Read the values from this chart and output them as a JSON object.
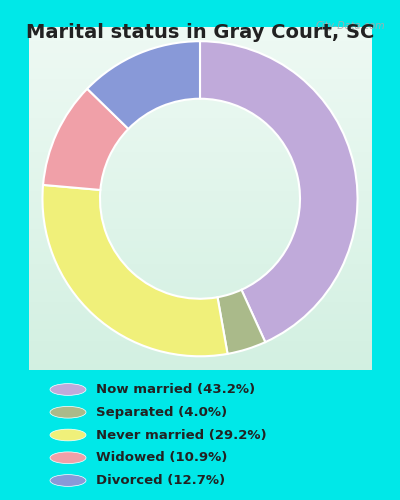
{
  "title": "Marital status in Gray Court, SC",
  "title_fontsize": 14,
  "title_fontweight": "bold",
  "categories": [
    "Now married",
    "Separated",
    "Never married",
    "Widowed",
    "Divorced"
  ],
  "values": [
    43.2,
    4.0,
    29.2,
    10.9,
    12.7
  ],
  "colors": [
    "#c0aada",
    "#aaba8a",
    "#f0f07a",
    "#f0a0a8",
    "#8899d8"
  ],
  "legend_labels": [
    "Now married (43.2%)",
    "Separated (4.0%)",
    "Never married (29.2%)",
    "Widowed (10.9%)",
    "Divorced (12.7%)"
  ],
  "bg_outer": "#00e8e8",
  "bg_chart_top": "#e8f5ee",
  "bg_chart_bottom": "#d0ede0",
  "watermark": "City-Data.com",
  "pie_order": [
    0,
    1,
    2,
    3,
    4
  ],
  "start_angle": 90
}
